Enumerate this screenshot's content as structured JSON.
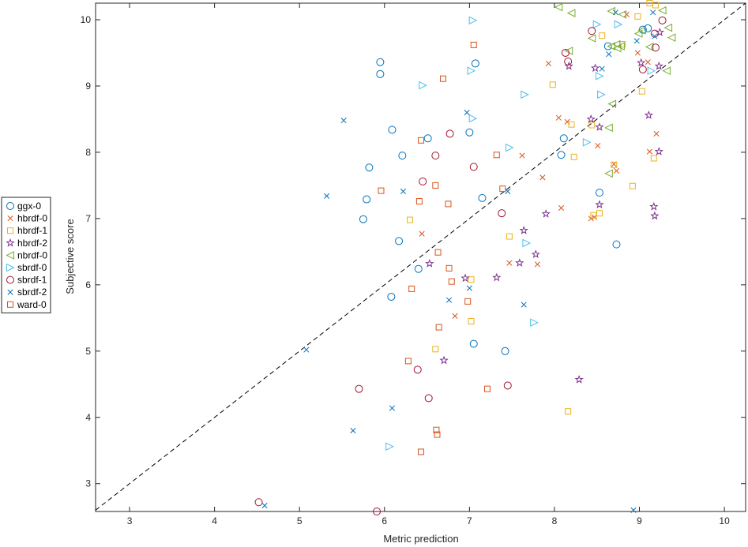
{
  "chart_data": {
    "type": "scatter",
    "title": "",
    "xlabel": "Metric prediction",
    "ylabel": "Subjective score",
    "xlim": [
      2.6,
      10.25
    ],
    "ylim": [
      2.58,
      10.25
    ],
    "xticks": [
      3,
      4,
      5,
      6,
      7,
      8,
      9,
      10
    ],
    "yticks": [
      3,
      4,
      5,
      6,
      7,
      8,
      9,
      10
    ],
    "grid": false,
    "legend_position": "outside-left",
    "reference_line": {
      "style": "dashed",
      "color": "#000000",
      "from": [
        2.6,
        2.6
      ],
      "to": [
        10.25,
        10.25
      ]
    },
    "series": [
      {
        "name": "ggx-0",
        "marker": "circle",
        "color": "#0072BD",
        "points": [
          [
            5.95,
            9.36
          ],
          [
            5.95,
            9.18
          ],
          [
            7.07,
            9.34
          ],
          [
            6.09,
            8.34
          ],
          [
            6.51,
            8.21
          ],
          [
            7.0,
            8.3
          ],
          [
            5.82,
            7.77
          ],
          [
            6.21,
            7.95
          ],
          [
            5.79,
            7.29
          ],
          [
            5.75,
            6.99
          ],
          [
            7.15,
            7.31
          ],
          [
            6.17,
            6.66
          ],
          [
            6.4,
            6.24
          ],
          [
            6.08,
            5.82
          ],
          [
            7.05,
            5.11
          ],
          [
            7.42,
            5.0
          ],
          [
            8.11,
            8.21
          ],
          [
            8.08,
            7.96
          ],
          [
            8.53,
            7.39
          ],
          [
            8.73,
            6.61
          ],
          [
            8.63,
            9.6
          ],
          [
            9.04,
            9.85
          ],
          [
            9.1,
            9.87
          ]
        ]
      },
      {
        "name": "hbrdf-0",
        "marker": "x",
        "color": "#D95319",
        "points": [
          [
            7.93,
            9.34
          ],
          [
            8.05,
            8.52
          ],
          [
            8.15,
            8.46
          ],
          [
            8.51,
            8.1
          ],
          [
            7.62,
            7.95
          ],
          [
            7.86,
            7.62
          ],
          [
            8.08,
            7.16
          ],
          [
            8.73,
            7.72
          ],
          [
            8.7,
            7.82
          ],
          [
            8.43,
            7.0
          ],
          [
            8.47,
            7.02
          ],
          [
            6.44,
            6.77
          ],
          [
            7.47,
            6.33
          ],
          [
            7.8,
            6.31
          ],
          [
            6.83,
            5.53
          ],
          [
            8.85,
            10.08
          ],
          [
            8.98,
            9.5
          ],
          [
            9.1,
            9.36
          ],
          [
            9.2,
            8.28
          ],
          [
            9.12,
            8.01
          ]
        ]
      },
      {
        "name": "hbrdf-1",
        "marker": "square",
        "color": "#EDB120",
        "points": [
          [
            9.12,
            10.25
          ],
          [
            9.19,
            10.22
          ],
          [
            8.98,
            10.05
          ],
          [
            8.56,
            9.76
          ],
          [
            8.8,
            9.63
          ],
          [
            7.98,
            9.02
          ],
          [
            9.03,
            8.92
          ],
          [
            8.2,
            8.42
          ],
          [
            8.44,
            8.41
          ],
          [
            8.23,
            7.93
          ],
          [
            9.17,
            7.91
          ],
          [
            8.7,
            7.81
          ],
          [
            8.92,
            7.49
          ],
          [
            6.3,
            6.98
          ],
          [
            8.53,
            7.08
          ],
          [
            8.46,
            7.05
          ],
          [
            7.47,
            6.73
          ],
          [
            7.02,
            6.08
          ],
          [
            7.02,
            5.45
          ],
          [
            6.6,
            5.03
          ],
          [
            8.16,
            4.09
          ]
        ]
      },
      {
        "name": "hbrdf-2",
        "marker": "star",
        "color": "#7E2F8E",
        "points": [
          [
            9.02,
            9.35
          ],
          [
            9.23,
            9.3
          ],
          [
            8.17,
            9.3
          ],
          [
            8.48,
            9.27
          ],
          [
            9.24,
            9.81
          ],
          [
            9.11,
            8.56
          ],
          [
            8.43,
            8.5
          ],
          [
            8.53,
            8.38
          ],
          [
            9.23,
            8.01
          ],
          [
            9.17,
            7.18
          ],
          [
            9.18,
            7.04
          ],
          [
            8.53,
            7.21
          ],
          [
            7.9,
            7.07
          ],
          [
            7.64,
            6.82
          ],
          [
            7.78,
            6.46
          ],
          [
            7.59,
            6.33
          ],
          [
            6.53,
            6.32
          ],
          [
            7.32,
            6.11
          ],
          [
            6.95,
            6.1
          ],
          [
            6.7,
            4.86
          ],
          [
            8.29,
            4.57
          ]
        ]
      },
      {
        "name": "nbrdf-0",
        "marker": "triangle-left",
        "color": "#77AC30",
        "points": [
          [
            8.05,
            10.19
          ],
          [
            8.2,
            10.1
          ],
          [
            8.67,
            10.13
          ],
          [
            8.8,
            10.08
          ],
          [
            9.27,
            10.14
          ],
          [
            8.67,
            9.6
          ],
          [
            8.78,
            9.6
          ],
          [
            8.73,
            9.63
          ],
          [
            8.74,
            9.57
          ],
          [
            8.99,
            9.79
          ],
          [
            9.03,
            9.84
          ],
          [
            9.34,
            9.88
          ],
          [
            9.38,
            9.73
          ],
          [
            9.12,
            9.59
          ],
          [
            8.44,
            9.72
          ],
          [
            8.17,
            9.53
          ],
          [
            9.32,
            9.23
          ],
          [
            8.68,
            8.73
          ],
          [
            8.64,
            8.37
          ],
          [
            8.64,
            7.68
          ]
        ]
      },
      {
        "name": "sbrdf-0",
        "marker": "triangle-right",
        "color": "#4DBEEE",
        "points": [
          [
            7.04,
            9.99
          ],
          [
            8.5,
            9.93
          ],
          [
            8.75,
            9.93
          ],
          [
            6.45,
            9.01
          ],
          [
            7.02,
            9.23
          ],
          [
            7.65,
            8.87
          ],
          [
            8.53,
            9.15
          ],
          [
            8.55,
            8.87
          ],
          [
            9.14,
            9.23
          ],
          [
            7.47,
            8.07
          ],
          [
            7.04,
            8.51
          ],
          [
            8.38,
            8.15
          ],
          [
            7.67,
            6.63
          ],
          [
            7.76,
            5.43
          ],
          [
            6.06,
            3.56
          ]
        ]
      },
      {
        "name": "sbrdf-1",
        "marker": "circle",
        "color": "#A2142F",
        "points": [
          [
            8.44,
            9.83
          ],
          [
            8.13,
            9.5
          ],
          [
            8.16,
            9.37
          ],
          [
            9.04,
            9.25
          ],
          [
            9.18,
            9.79
          ],
          [
            9.19,
            9.58
          ],
          [
            9.27,
            9.99
          ],
          [
            6.77,
            8.28
          ],
          [
            7.05,
            7.78
          ],
          [
            6.6,
            7.95
          ],
          [
            6.45,
            7.56
          ],
          [
            7.38,
            7.08
          ],
          [
            5.7,
            4.43
          ],
          [
            6.52,
            4.29
          ],
          [
            6.39,
            4.72
          ],
          [
            7.45,
            4.48
          ],
          [
            4.52,
            2.72
          ],
          [
            5.91,
            2.58
          ]
        ]
      },
      {
        "name": "sbrdf-2",
        "marker": "x",
        "color": "#0072BD",
        "points": [
          [
            8.72,
            10.11
          ],
          [
            9.16,
            10.11
          ],
          [
            8.97,
            9.68
          ],
          [
            8.64,
            9.48
          ],
          [
            8.56,
            9.26
          ],
          [
            9.18,
            9.75
          ],
          [
            6.97,
            8.6
          ],
          [
            5.52,
            8.48
          ],
          [
            5.32,
            7.34
          ],
          [
            6.22,
            7.41
          ],
          [
            7.45,
            7.41
          ],
          [
            6.76,
            5.77
          ],
          [
            7.0,
            5.95
          ],
          [
            7.64,
            5.7
          ],
          [
            5.08,
            5.02
          ],
          [
            6.09,
            4.14
          ],
          [
            5.63,
            3.8
          ],
          [
            4.59,
            2.67
          ],
          [
            8.93,
            2.6
          ]
        ]
      },
      {
        "name": "ward-0",
        "marker": "square",
        "color": "#D95319",
        "points": [
          [
            7.05,
            9.62
          ],
          [
            6.69,
            9.11
          ],
          [
            6.43,
            8.18
          ],
          [
            7.32,
            7.96
          ],
          [
            6.6,
            7.5
          ],
          [
            7.39,
            7.45
          ],
          [
            5.96,
            7.42
          ],
          [
            6.41,
            7.26
          ],
          [
            6.75,
            7.22
          ],
          [
            6.63,
            6.49
          ],
          [
            6.76,
            6.25
          ],
          [
            6.32,
            5.94
          ],
          [
            6.79,
            6.05
          ],
          [
            6.98,
            5.75
          ],
          [
            6.64,
            5.36
          ],
          [
            6.28,
            4.85
          ],
          [
            7.21,
            4.43
          ],
          [
            6.61,
            3.81
          ],
          [
            6.62,
            3.74
          ],
          [
            6.43,
            3.48
          ]
        ]
      }
    ]
  }
}
